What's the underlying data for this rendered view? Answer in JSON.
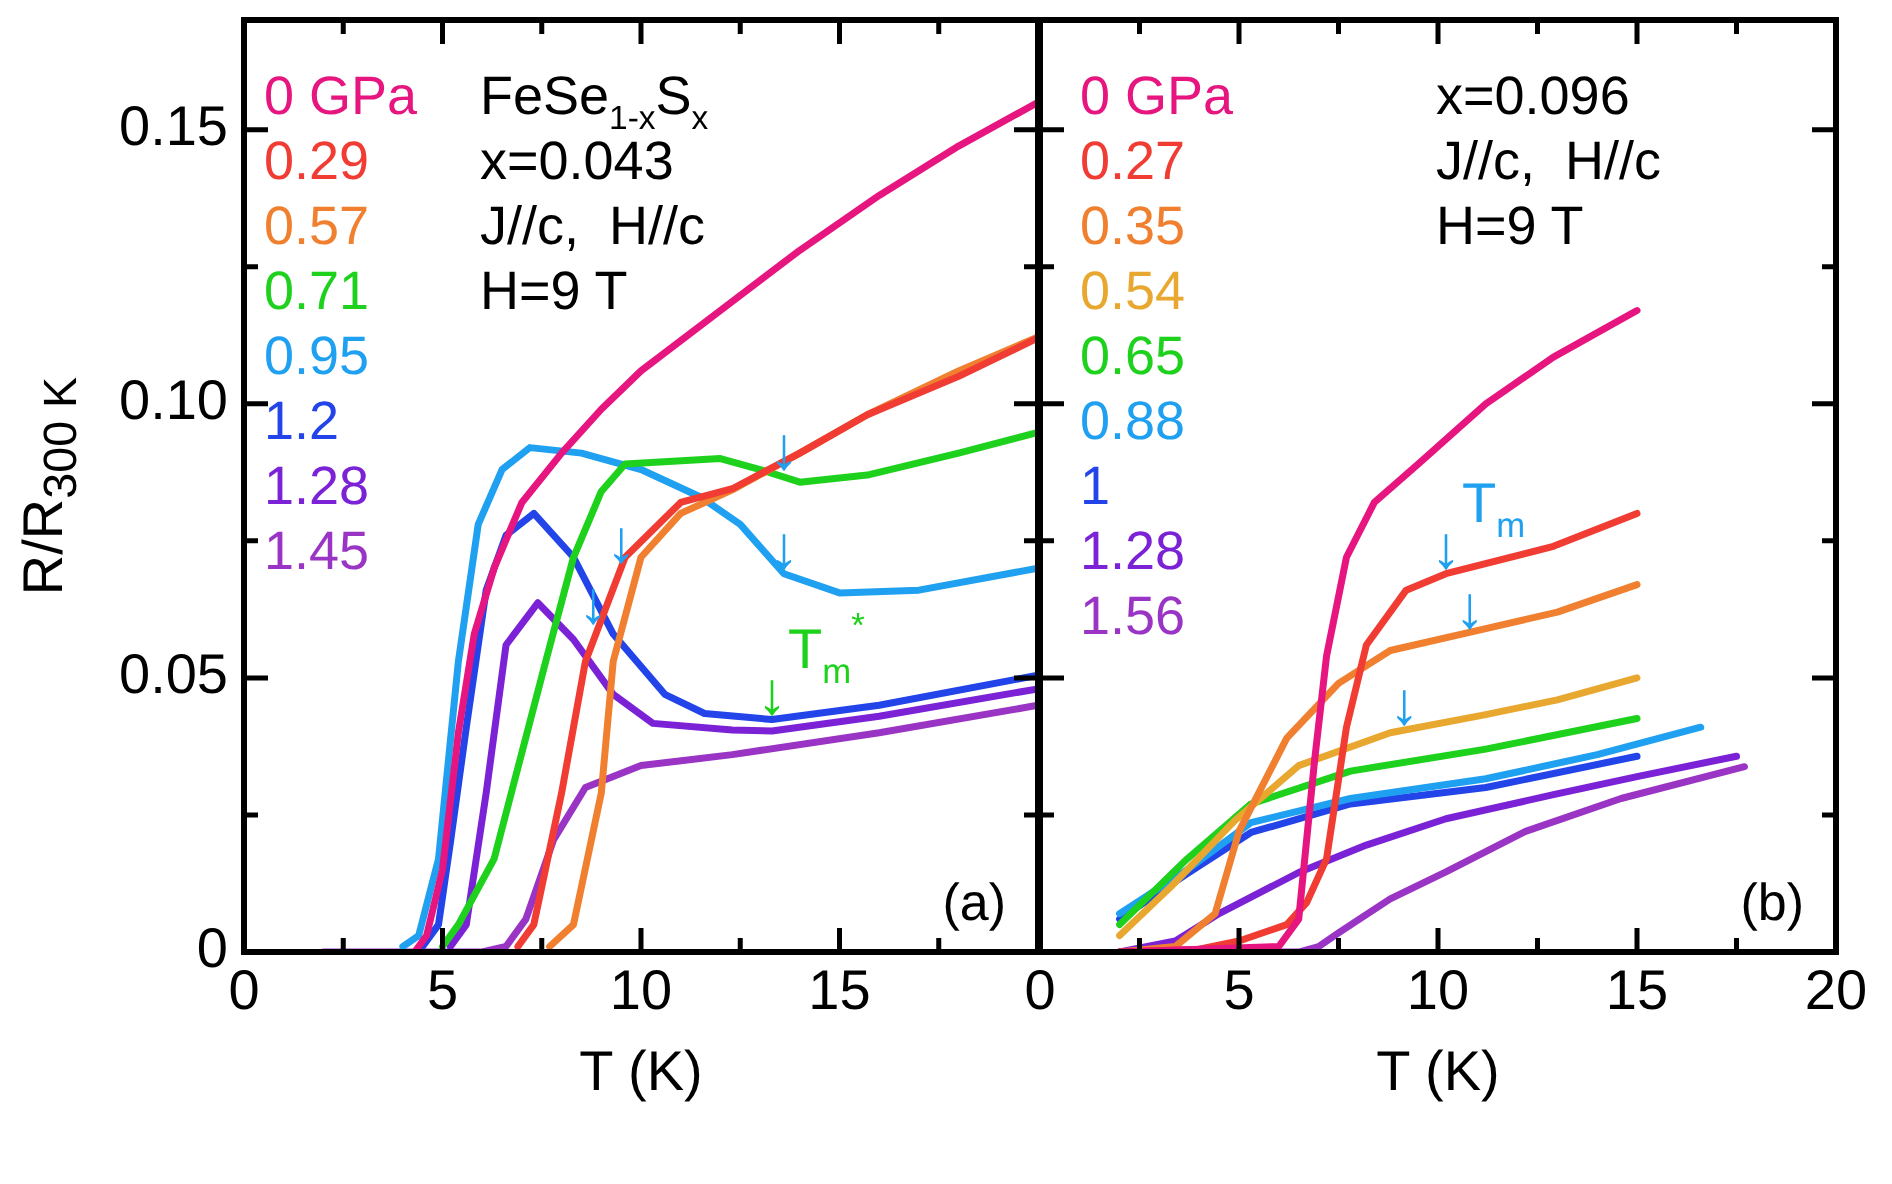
{
  "chart_data": [
    {
      "type": "line",
      "title": "(a)",
      "xlabel": "T (K)",
      "ylabel": "R/R$_{300 K}$",
      "legend": "top left",
      "xlim": [
        0,
        20
      ],
      "ylim": [
        0,
        0.17
      ],
      "xticks": [
        0,
        {
          "value": 2.5,
          "label": null
        },
        5,
        {
          "value": 7.5,
          "label": null
        },
        10,
        {
          "value": 12.5,
          "label": null
        },
        15,
        {
          "value": 17.5,
          "label": null
        },
        {
          "value": 20,
          "label": null
        }
      ],
      "yticks": [
        0,
        {
          "value": 0.025,
          "label": null
        },
        0.05,
        {
          "value": 0.075,
          "label": null
        },
        {
          "value": 0.1,
          "label": "0.10"
        },
        {
          "value": 0.125,
          "label": null
        },
        0.15
      ],
      "series": [
        {
          "name": "0 GPa",
          "color": "#e6157f",
          "x": [
            4.3,
            4.6,
            5,
            5.4,
            5.8,
            6.3,
            7,
            8,
            9,
            10,
            12,
            14,
            16,
            18,
            20
          ],
          "values": [
            0,
            0.003,
            0.015,
            0.04,
            0.058,
            0.07,
            0.082,
            0.091,
            0.099,
            0.106,
            0.117,
            0.128,
            0.138,
            0.147,
            0.155
          ]
        },
        {
          "name": "0.29",
          "color": "#f03c33",
          "x": [
            6.9,
            7.3,
            8,
            8.6,
            9.6,
            11,
            12.3,
            14,
            15.7,
            18,
            20
          ],
          "values": [
            0.001,
            0.005,
            0.029,
            0.053,
            0.072,
            0.082,
            0.0845,
            0.091,
            0.098,
            0.105,
            0.112
          ]
        },
        {
          "name": "0.57",
          "color": "#f08030",
          "x": [
            7.7,
            8.3,
            9,
            9.3,
            10,
            11,
            12.3,
            14,
            15.7,
            18,
            20
          ],
          "values": [
            0.001,
            0.005,
            0.029,
            0.053,
            0.072,
            0.08,
            0.0843,
            0.091,
            0.098,
            0.106,
            0.1122
          ]
        },
        {
          "name": "0.71",
          "color": "#1dd11d",
          "x": [
            5,
            5.4,
            6.3,
            7.6,
            8.3,
            9,
            9.6,
            12,
            13,
            14,
            15.7,
            18,
            20
          ],
          "values": [
            0.001,
            0.005,
            0.017,
            0.053,
            0.072,
            0.084,
            0.089,
            0.09,
            0.088,
            0.0857,
            0.087,
            0.091,
            0.0948
          ]
        },
        {
          "name": "0.95",
          "color": "#1fa0f0",
          "x": [
            4,
            4.4,
            4.9,
            5.4,
            5.9,
            6.5,
            7.2,
            8.5,
            10,
            11.5,
            12.5,
            13.6,
            15,
            17,
            20
          ],
          "values": [
            0.001,
            0.003,
            0.017,
            0.053,
            0.078,
            0.088,
            0.092,
            0.091,
            0.088,
            0.083,
            0.078,
            0.069,
            0.0655,
            0.066,
            0.07
          ]
        },
        {
          "name": "1.2",
          "color": "#2244e8",
          "x": [
            4.5,
            4.9,
            5.2,
            5.6,
            6.1,
            6.6,
            7.3,
            8.3,
            9.3,
            10.6,
            11.6,
            13.3,
            16,
            20
          ],
          "values": [
            0.001,
            0.005,
            0.02,
            0.041,
            0.066,
            0.076,
            0.08,
            0.072,
            0.058,
            0.047,
            0.0435,
            0.0424,
            0.045,
            0.0505
          ]
        },
        {
          "name": "1.28",
          "color": "#7b22d6",
          "x": [
            5.2,
            5.6,
            6.1,
            6.6,
            7.4,
            8.3,
            9.3,
            10.3,
            12.3,
            13.3,
            16,
            20
          ],
          "values": [
            0.001,
            0.005,
            0.029,
            0.056,
            0.0637,
            0.057,
            0.047,
            0.0417,
            0.0405,
            0.0403,
            0.043,
            0.048
          ]
        },
        {
          "name": "1.45",
          "color": "#9a34c4",
          "x": [
            2,
            6,
            6.6,
            7.1,
            7.8,
            8.6,
            10,
            12.3,
            16,
            20
          ],
          "values": [
            0,
            0,
            0.001,
            0.006,
            0.0205,
            0.03,
            0.034,
            0.036,
            0.04,
            0.045
          ]
        }
      ],
      "annotations": [
        "FeSe$_{1-x}$S$_{x}$",
        "x=0.043",
        "J//c,  H//c",
        "H=9 T",
        {
          "text": "↓",
          "x": 13.6,
          "y": 0.087
        },
        {
          "text": "↓",
          "x": 13.6,
          "y": 0.069
        },
        {
          "text": "↓",
          "x": 8.8,
          "y": 0.059
        },
        {
          "text": "↓",
          "x": 9.5,
          "y": 0.07
        },
        {
          "text": "↓",
          "x": 13.3,
          "y": 0.0424
        },
        {
          "text": "T$_{m}$$^{*}$",
          "x": 13.3,
          "y": 0.0424
        }
      ]
    },
    {
      "type": "line",
      "title": "(b)",
      "xlabel": "T (K)",
      "legend": "top left",
      "tick_labels": "x",
      "xlim": [
        0,
        20
      ],
      "ylim": [
        0,
        0.17
      ],
      "xticks": [
        0,
        {
          "value": 2.5,
          "label": null
        },
        5,
        {
          "value": 7.5,
          "label": null
        },
        10,
        {
          "value": 12.5,
          "label": null
        },
        15,
        {
          "value": 17.5,
          "label": null
        },
        20
      ],
      "yticks": [
        0,
        {
          "value": 0.025,
          "label": null
        },
        0.05,
        {
          "value": 0.075,
          "label": null
        },
        0.1,
        {
          "value": 0.125,
          "label": null
        },
        0.15
      ],
      "series": [
        {
          "name": "0 GPa",
          "color": "#e6157f",
          "x": [
            2,
            6,
            6.5,
            6.9,
            7.2,
            7.7,
            8.4,
            9.5,
            11.2,
            12.9,
            15
          ],
          "values": [
            0,
            0.001,
            0.006,
            0.035,
            0.054,
            0.072,
            0.082,
            0.089,
            0.1,
            0.1085,
            0.117
          ]
        },
        {
          "name": "0.27",
          "color": "#f03c33",
          "x": [
            2,
            4,
            5,
            6.2,
            6.7,
            7.2,
            7.7,
            8.2,
            9.2,
            10.2,
            12.9,
            15
          ],
          "values": [
            0,
            0.0005,
            0.002,
            0.005,
            0.009,
            0.017,
            0.041,
            0.056,
            0.066,
            0.069,
            0.074,
            0.08
          ]
        },
        {
          "name": "0.35",
          "color": "#f08030",
          "x": [
            2,
            3.4,
            4.4,
            5,
            6.2,
            7.5,
            8.8,
            11.2,
            13,
            15
          ],
          "values": [
            0,
            0.001,
            0.007,
            0.022,
            0.039,
            0.049,
            0.055,
            0.059,
            0.062,
            0.067
          ]
        },
        {
          "name": "0.54",
          "color": "#e8a830",
          "x": [
            2,
            3.3,
            4.9,
            6.5,
            8.8,
            11.2,
            13,
            15
          ],
          "values": [
            0.003,
            0.012,
            0.024,
            0.034,
            0.04,
            0.0433,
            0.046,
            0.05
          ]
        },
        {
          "name": "0.65",
          "color": "#1dd11d",
          "x": [
            2,
            3.7,
            5.3,
            7.8,
            11.2,
            15
          ],
          "values": [
            0.005,
            0.017,
            0.027,
            0.033,
            0.037,
            0.0426
          ]
        },
        {
          "name": "0.88",
          "color": "#1fa0f0",
          "x": [
            2,
            3.7,
            5.3,
            7.8,
            11.2,
            14,
            16.6
          ],
          "values": [
            0.007,
            0.015,
            0.0236,
            0.028,
            0.0316,
            0.036,
            0.041
          ]
        },
        {
          "name": "1",
          "color": "#2244e8",
          "x": [
            2,
            3.7,
            5.3,
            7.8,
            11.2,
            15
          ],
          "values": [
            0.006,
            0.0143,
            0.0218,
            0.027,
            0.03,
            0.0357
          ]
        },
        {
          "name": "1.28",
          "color": "#7b22d6",
          "x": [
            2,
            3.4,
            4.5,
            6.5,
            8.2,
            10.2,
            12.9,
            15,
            17.5
          ],
          "values": [
            0,
            0.002,
            0.007,
            0.0145,
            0.0195,
            0.0243,
            0.0287,
            0.032,
            0.0357
          ]
        },
        {
          "name": "1.56",
          "color": "#9a34c4",
          "x": [
            2,
            6.5,
            7,
            7.5,
            8.8,
            10.2,
            12.2,
            14.6,
            17.7
          ],
          "values": [
            0,
            0,
            0.001,
            0.0035,
            0.0097,
            0.0146,
            0.022,
            0.028,
            0.0338
          ]
        }
      ],
      "annotations": [
        "x=0.096",
        "J//c,  H//c",
        "H=9 T",
        {
          "text": "↓",
          "x": 10.2,
          "y": 0.069
        },
        {
          "text": "↓",
          "x": 10.8,
          "y": 0.058
        },
        {
          "text": "↓",
          "x": 9.15,
          "y": 0.0405
        },
        {
          "text": "T$_{m}$",
          "x": 10.2,
          "y": 0.069
        }
      ]
    }
  ]
}
